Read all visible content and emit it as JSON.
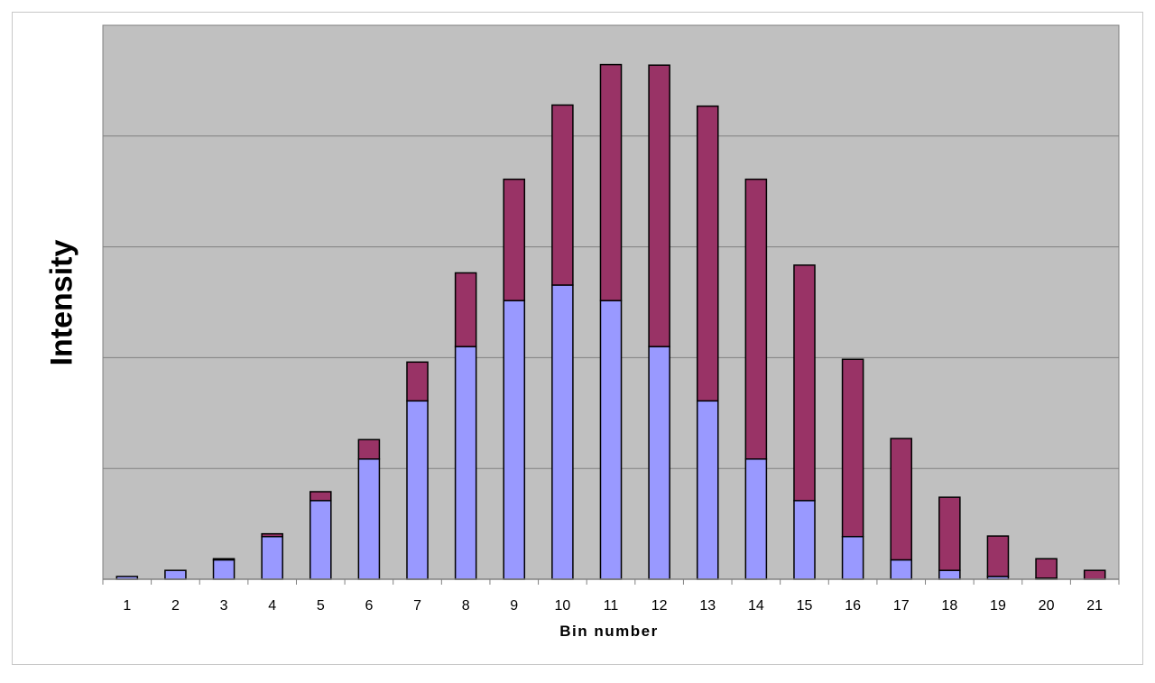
{
  "chart_data": {
    "type": "bar",
    "stacked": true,
    "title": "",
    "xlabel": "Bin number",
    "ylabel": "Intensity",
    "categories": [
      "1",
      "2",
      "3",
      "4",
      "5",
      "6",
      "7",
      "8",
      "9",
      "10",
      "11",
      "12",
      "13",
      "14",
      "15",
      "16",
      "17",
      "18",
      "19",
      "20",
      "21"
    ],
    "ylim": [
      0,
      1
    ],
    "y_tick_labels_shown": false,
    "grid": "horizontal",
    "legend": "none",
    "series": [
      {
        "color": "#9999FF",
        "values": [
          0.005,
          0.016,
          0.035,
          0.077,
          0.142,
          0.217,
          0.322,
          0.42,
          0.503,
          0.531,
          0.503,
          0.42,
          0.322,
          0.217,
          0.142,
          0.077,
          0.035,
          0.016,
          0.005,
          0.002,
          0.0
        ]
      },
      {
        "color": "#993366",
        "values": [
          0.0,
          0.0,
          0.002,
          0.005,
          0.016,
          0.035,
          0.07,
          0.133,
          0.219,
          0.325,
          0.426,
          0.508,
          0.532,
          0.505,
          0.425,
          0.32,
          0.219,
          0.132,
          0.073,
          0.035,
          0.016
        ]
      }
    ],
    "plot_background": "#C0C0C0",
    "gridline_color": "#808080"
  }
}
